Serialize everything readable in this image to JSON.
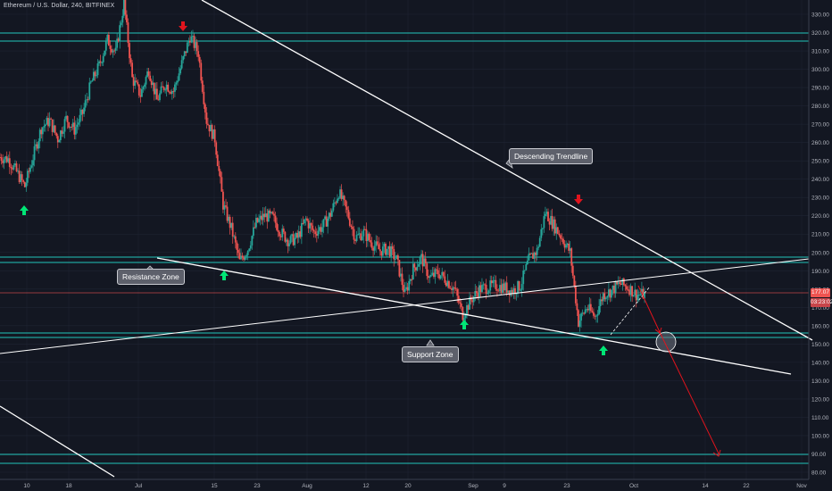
{
  "header": {
    "title": "Ethereum / U.S. Dollar, 240, BITFINEX"
  },
  "colors": {
    "background": "#131722",
    "grid": "#1f2433",
    "up": "#26a69a",
    "down": "#ef5350",
    "zone_line": "#20c4b9",
    "trend_line": "#ffffff",
    "arrow_up": "#00e676",
    "arrow_down": "#e0141d",
    "projection": "#e0141d",
    "current_price_line": "#ef5350"
  },
  "annotations": {
    "descending_trendline": "Descending Trendline",
    "resistance_zone": "Resistance Zone",
    "support_zone": "Support Zone"
  },
  "price_labels": {
    "current_price": "177.07",
    "countdown": "03:23:02"
  },
  "chart_data": {
    "type": "line",
    "title": "Ethereum / U.S. Dollar, 240, BITFINEX",
    "x_tick_labels": [
      "10",
      "18",
      "Jul",
      "15",
      "23",
      "Aug",
      "12",
      "20",
      "Sep",
      "9",
      "23",
      "Oct",
      "14",
      "22",
      "Nov"
    ],
    "y_tick_labels": [
      "330.00",
      "320.00",
      "310.00",
      "300.00",
      "290.00",
      "280.00",
      "270.00",
      "260.00",
      "250.00",
      "240.00",
      "230.00",
      "220.00",
      "210.00",
      "200.00",
      "190.00",
      "180.00",
      "170.00",
      "160.00",
      "150.00",
      "140.00",
      "130.00",
      "120.00",
      "110.00",
      "100.00",
      "90.00",
      "80.00"
    ],
    "y_axis": {
      "min": 78,
      "max": 333,
      "position": "right"
    },
    "series": [
      {
        "values": [
          252,
          251,
          244,
          236,
          252,
          268,
          272,
          262,
          273,
          267,
          276,
          292,
          302,
          316,
          309,
          336,
          295,
          286,
          300,
          283,
          292,
          288,
          303,
          318,
          309,
          272,
          262,
          226,
          213,
          195,
          202,
          216,
          220,
          219,
          211,
          206,
          208,
          218,
          211,
          214,
          221,
          233,
          222,
          208,
          211,
          205,
          201,
          202,
          196,
          177,
          191,
          197,
          186,
          189,
          185,
          180,
          166,
          174,
          180,
          181,
          182,
          181,
          179,
          182,
          196,
          201,
          222,
          215,
          208,
          200,
          162,
          170,
          165,
          177,
          179,
          183,
          181,
          177,
          177
        ]
      }
    ],
    "horizontal_levels": [
      {
        "name": "Resistance Zone",
        "values": [
          315,
          319
        ]
      },
      {
        "name": "Resistance Zone",
        "values": [
          194,
          197
        ]
      },
      {
        "name": "Support Zone",
        "values": [
          153,
          156
        ]
      },
      {
        "name": "Support Zone",
        "values": [
          85,
          89
        ]
      },
      {
        "name": "current price",
        "values": [
          177.07
        ]
      }
    ],
    "grid": true,
    "legend": "none"
  }
}
